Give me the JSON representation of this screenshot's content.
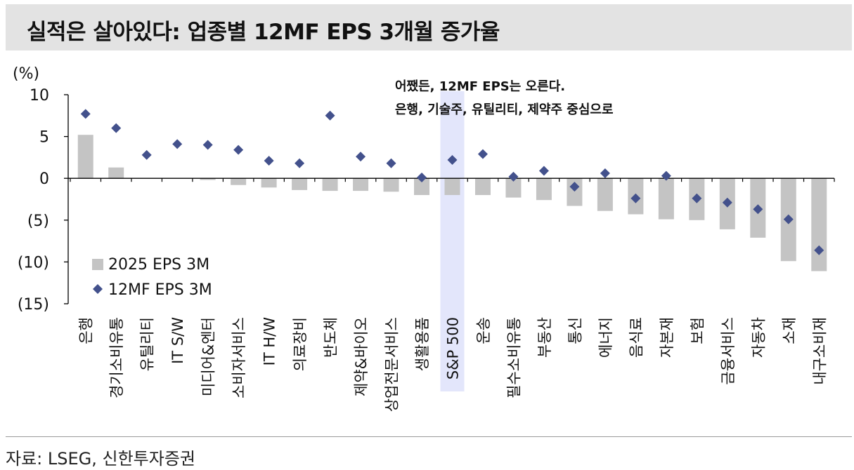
{
  "title": "실적은 살아있다: 업종별 12MF EPS 3개월 증가율",
  "source": "자료: LSEG, 신한투자증권",
  "chart_data": {
    "type": "bar",
    "ylabel": "(%)",
    "ylim": [
      -15,
      10
    ],
    "yticks": [
      10,
      5,
      0,
      -5,
      -10,
      -15
    ],
    "ytick_labels": [
      "10",
      "5",
      "0",
      "(5)",
      "(10)",
      "(15)"
    ],
    "categories": [
      "은행",
      "경기소비유통",
      "유틸리티",
      "IT S/W",
      "미디어&엔터",
      "소비자서비스",
      "IT H/W",
      "의료장비",
      "반도체",
      "제약&바이오",
      "상업전문서비스",
      "생활용품",
      "S&P 500",
      "운송",
      "필수소비유통",
      "부동산",
      "통신",
      "에너지",
      "음식료",
      "자본재",
      "보험",
      "금융서비스",
      "자동차",
      "소재",
      "내구소비재"
    ],
    "series": [
      {
        "name": "2025 EPS 3M",
        "mark": "bar",
        "color": "#c4c4c4",
        "values": [
          5.2,
          1.3,
          0.0,
          0.0,
          -0.2,
          -0.8,
          -1.1,
          -1.4,
          -1.5,
          -1.5,
          -1.6,
          -2.0,
          -2.0,
          -2.0,
          -2.3,
          -2.6,
          -3.3,
          -3.9,
          -4.3,
          -4.9,
          -5.0,
          -6.1,
          -7.1,
          -9.9,
          -11.1
        ]
      },
      {
        "name": "12MF EPS 3M",
        "mark": "diamond",
        "color": "#43518c",
        "values": [
          7.7,
          6.0,
          2.8,
          4.1,
          4.0,
          3.4,
          2.1,
          1.8,
          7.5,
          2.6,
          1.8,
          0.1,
          2.2,
          2.9,
          0.2,
          0.9,
          -1.0,
          0.6,
          -2.4,
          0.3,
          -2.4,
          -2.9,
          -3.7,
          -4.9,
          -8.6
        ]
      }
    ],
    "highlight_category": "S&P 500",
    "highlight_color": "#e3e6fb",
    "annotation": [
      "어쨌든, 12MF EPS는 오른다.",
      "은행, 기술주, 유틸리티, 제약주 중심으로"
    ],
    "legend_position": "bottom-left",
    "grid": false
  }
}
